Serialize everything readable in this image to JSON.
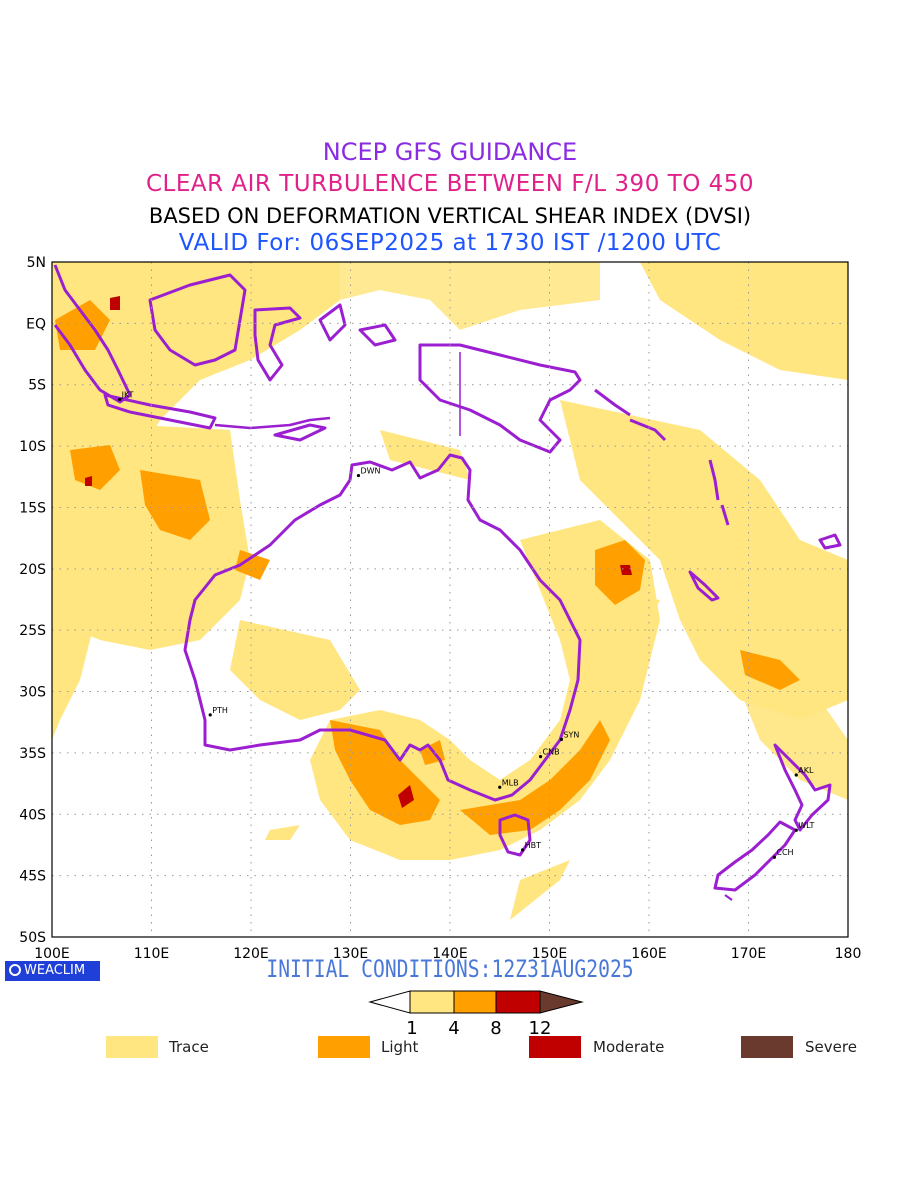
{
  "header": {
    "line1": "NCEP GFS GUIDANCE",
    "line2": "CLEAR AIR TURBULENCE BETWEEN F/L 390 TO 450",
    "line3": "BASED ON DEFORMATION VERTICAL SHEAR INDEX (DVSI)",
    "line4": "VALID For: 06SEP2025 at 1730 IST /1200 UTC"
  },
  "map": {
    "lat_ticks": [
      "5N",
      "EQ",
      "5S",
      "10S",
      "15S",
      "20S",
      "25S",
      "30S",
      "35S",
      "40S",
      "45S",
      "50S"
    ],
    "lon_ticks": [
      "100E",
      "110E",
      "120E",
      "130E",
      "140E",
      "150E",
      "160E",
      "170E",
      "180"
    ],
    "cities": [
      {
        "code": "JKT",
        "lon": 106.8,
        "lat": -6.2
      },
      {
        "code": "DWN",
        "lon": 130.8,
        "lat": -12.4
      },
      {
        "code": "PTH",
        "lon": 115.9,
        "lat": -31.9
      },
      {
        "code": "SYN",
        "lon": 151.2,
        "lat": -33.9
      },
      {
        "code": "CNB",
        "lon": 149.1,
        "lat": -35.3
      },
      {
        "code": "MLB",
        "lon": 145.0,
        "lat": -37.8
      },
      {
        "code": "HBT",
        "lon": 147.3,
        "lat": -42.9
      },
      {
        "code": "AKL",
        "lon": 174.8,
        "lat": -36.8
      },
      {
        "code": "WLT",
        "lon": 174.8,
        "lat": -41.3
      },
      {
        "code": "CCH",
        "lon": 172.6,
        "lat": -43.5
      }
    ],
    "colors": {
      "trace": "#ffe680",
      "light": "#ffa000",
      "moderate": "#c00000",
      "severe": "#6b3a2e",
      "coast": "#9b1fd0"
    }
  },
  "footer": {
    "badge": "WEACLIM",
    "initial": "INITIAL CONDITIONS:12Z31AUG2025"
  },
  "colorbar": {
    "ticks": [
      "1",
      "4",
      "8",
      "12"
    ]
  },
  "legend": [
    {
      "label": "Trace",
      "color": "#ffe680"
    },
    {
      "label": "Light",
      "color": "#ffa000"
    },
    {
      "label": "Moderate",
      "color": "#c00000"
    },
    {
      "label": "Severe",
      "color": "#6b3a2e"
    }
  ]
}
